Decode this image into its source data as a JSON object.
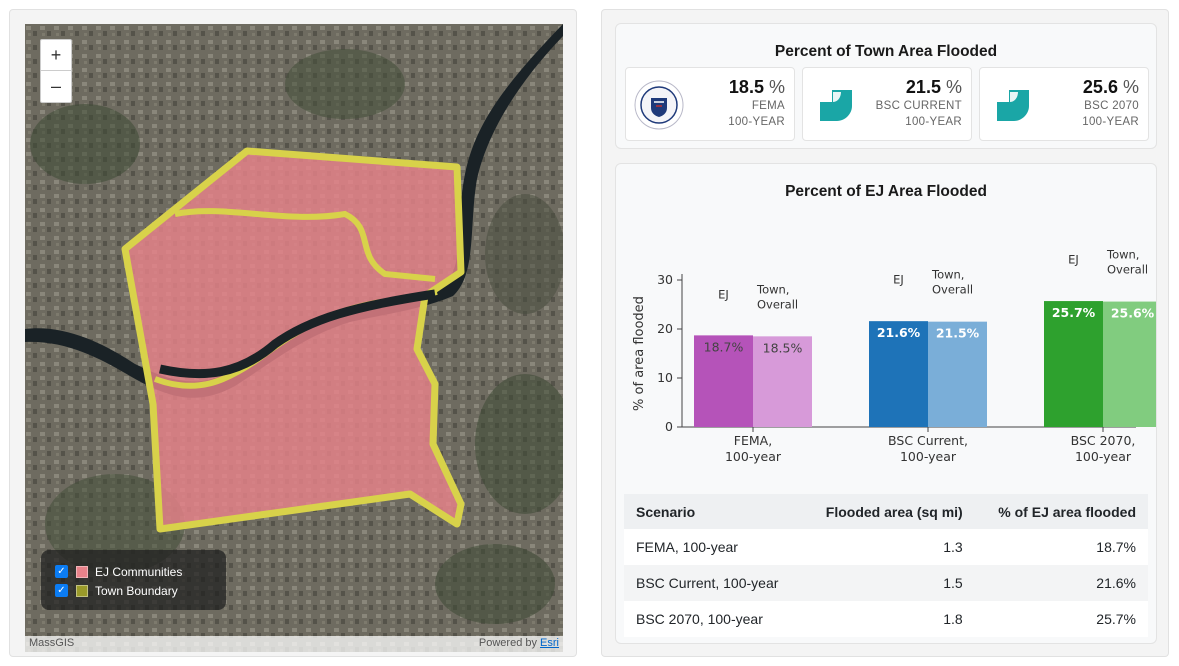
{
  "map": {
    "zoom_in_label": "+",
    "zoom_out_label": "–",
    "legend": [
      {
        "label": "EJ Communities",
        "color": "#e8828a",
        "checked": true
      },
      {
        "label": "Town Boundary",
        "color": "#9a9a2a",
        "checked": true
      }
    ],
    "attribution_left": "MassGIS",
    "attribution_powered": "Powered by ",
    "attribution_esri": "Esri"
  },
  "town": {
    "title": "Percent of Town Area Flooded",
    "pct_symbol": "%",
    "stats": [
      {
        "value": "18.5",
        "label1": "FEMA",
        "label2": "100-YEAR",
        "icon": "dhs-seal-icon"
      },
      {
        "value": "21.5",
        "label1": "BSC CURRENT",
        "label2": "100-YEAR",
        "icon": "bsc-logo-icon"
      },
      {
        "value": "25.6",
        "label1": "BSC 2070",
        "label2": "100-YEAR",
        "icon": "bsc-logo-icon"
      }
    ],
    "colors": {
      "bsc": "#1aa6a6"
    }
  },
  "ej": {
    "title": "Percent of EJ Area Flooded",
    "table": {
      "headers": [
        "Scenario",
        "Flooded area (sq mi)",
        "% of EJ area flooded"
      ],
      "rows": [
        [
          "FEMA, 100-year",
          "1.3",
          "18.7%"
        ],
        [
          "BSC Current, 100-year",
          "1.5",
          "21.6%"
        ],
        [
          "BSC 2070, 100-year",
          "1.8",
          "25.7%"
        ]
      ]
    }
  },
  "chart_data": {
    "type": "bar",
    "title": "",
    "xlabel": "",
    "ylabel": "% of area flooded",
    "ylim": [
      0,
      30
    ],
    "yticks": [
      0,
      10,
      20,
      30
    ],
    "categories": [
      [
        "FEMA,",
        "100-year"
      ],
      [
        "BSC Current,",
        "100-year"
      ],
      [
        "BSC 2070,",
        "100-year"
      ]
    ],
    "series": [
      {
        "name": "EJ",
        "values": [
          18.7,
          21.6,
          25.7
        ],
        "labels": [
          "18.7%",
          "21.6%",
          "25.7%"
        ],
        "colors": [
          "#b553b9",
          "#1e73b8",
          "#2ea12e"
        ]
      },
      {
        "name": "Town, Overall",
        "values": [
          18.5,
          21.5,
          25.6
        ],
        "labels": [
          "18.5%",
          "21.5%",
          "25.6%"
        ],
        "colors": [
          "#d79ad9",
          "#7aaed8",
          "#81cc7f"
        ]
      }
    ],
    "series_labels": [
      "EJ",
      [
        "Town,",
        "Overall"
      ]
    ],
    "label_text_colors": [
      "#444444",
      "#ffffff",
      "#ffffff"
    ]
  }
}
